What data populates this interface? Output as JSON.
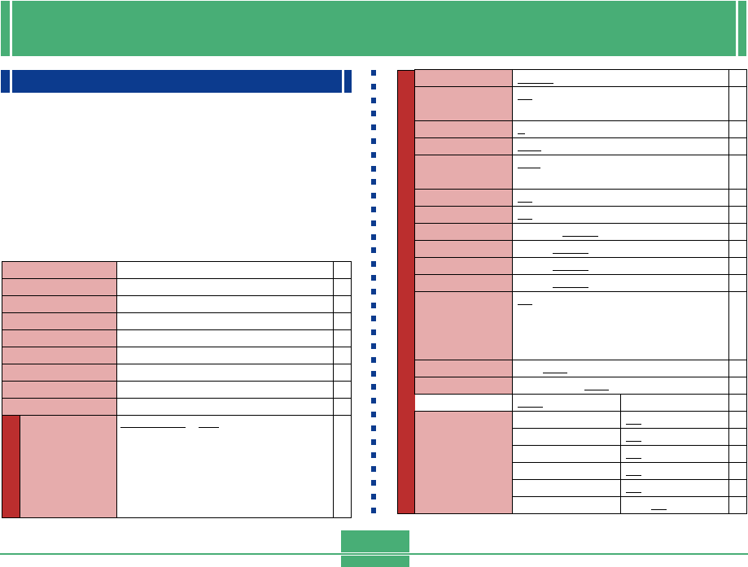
{
  "colors": {
    "header_green": "#48ae76",
    "section_blue": "#0c3b8e",
    "accent_red": "#bb2e2e",
    "label_pink": "#e6acac"
  },
  "header": {
    "title": ""
  },
  "section": {
    "title": ""
  },
  "intro": {
    "text": ""
  },
  "page": {
    "number": ""
  }
}
